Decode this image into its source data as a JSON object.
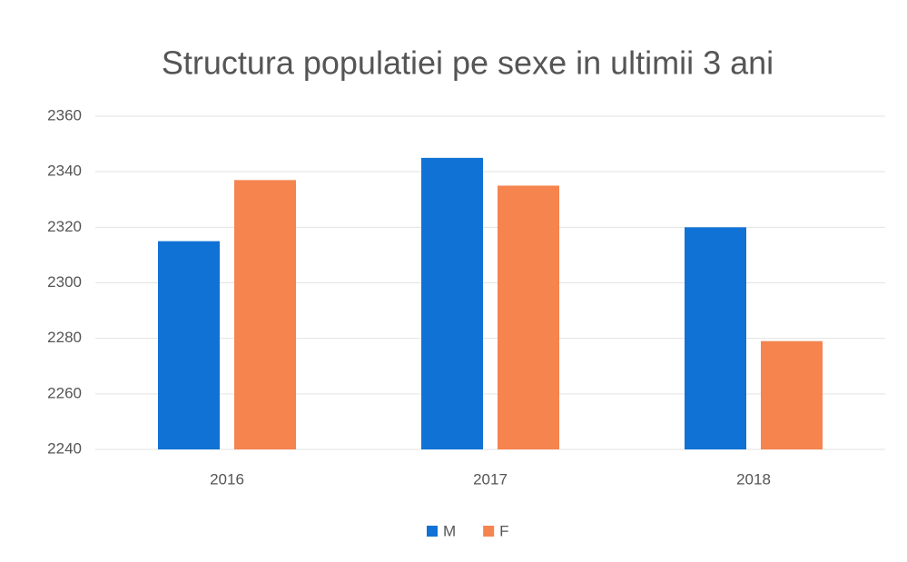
{
  "chart_data": {
    "type": "bar",
    "title": "Structura populatiei pe sexe in ultimii 3 ani",
    "categories": [
      "2016",
      "2017",
      "2018"
    ],
    "series": [
      {
        "name": "M",
        "color": "#1172d6",
        "values": [
          2315,
          2345,
          2320
        ]
      },
      {
        "name": "F",
        "color": "#f5844f",
        "values": [
          2337,
          2335,
          2279
        ]
      }
    ],
    "ylim": [
      2240,
      2360
    ],
    "yticks": [
      2240,
      2260,
      2280,
      2300,
      2320,
      2340,
      2360
    ],
    "grid": true,
    "legend": "bottom"
  }
}
